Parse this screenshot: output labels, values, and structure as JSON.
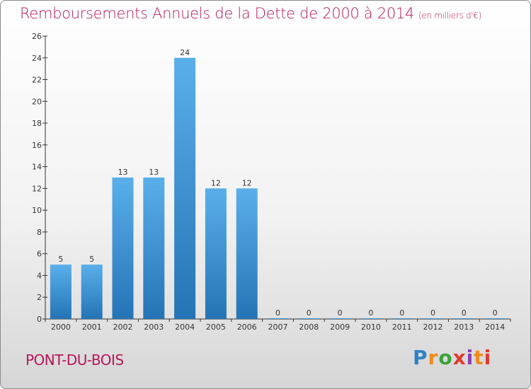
{
  "header": {
    "title": "Remboursements Annuels de la Dette de 2000 à 2014",
    "subtitle": "(en milliers d'€)"
  },
  "footer": {
    "commune": "PONT-DU-BOIS",
    "logo_letters": [
      "P",
      "r",
      "o",
      "x",
      "i",
      "t",
      "i"
    ]
  },
  "colors": {
    "bar_top": "#5aafea",
    "bar_bottom": "#2474b5",
    "title": "#b8175a"
  },
  "chart_data": {
    "type": "bar",
    "title": "Remboursements Annuels de la Dette de 2000 à 2014",
    "subtitle": "(en milliers d'€)",
    "xlabel": "",
    "ylabel": "",
    "categories": [
      "2000",
      "2001",
      "2002",
      "2003",
      "2004",
      "2005",
      "2006",
      "2007",
      "2008",
      "2009",
      "2010",
      "2011",
      "2012",
      "2013",
      "2014"
    ],
    "values": [
      5,
      5,
      13,
      13,
      24,
      12,
      12,
      0,
      0,
      0,
      0,
      0,
      0,
      0,
      0
    ],
    "ylim": [
      0,
      26
    ],
    "yticks": [
      0,
      2,
      4,
      6,
      8,
      10,
      12,
      14,
      16,
      18,
      20,
      22,
      24,
      26
    ],
    "grid": false,
    "legend": "none"
  }
}
